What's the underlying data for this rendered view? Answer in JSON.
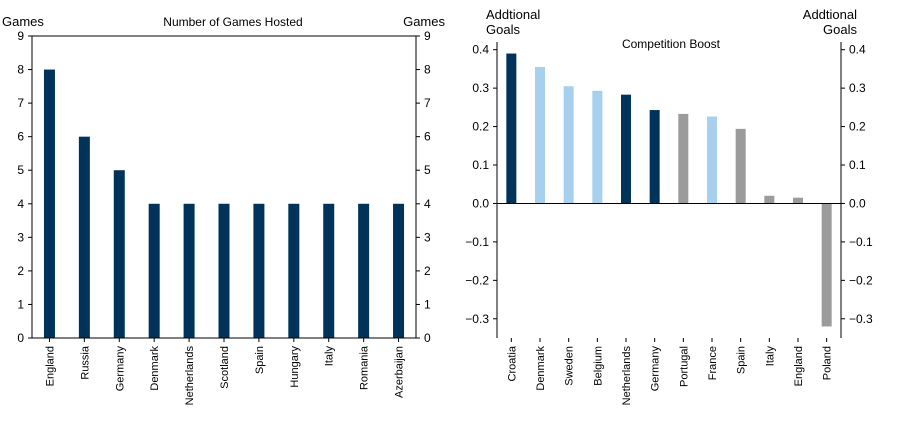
{
  "chart_data": [
    {
      "type": "bar",
      "title": "Number of Games Hosted",
      "ylabel_left": "Games",
      "ylabel_right": "Games",
      "ylim": [
        0,
        9
      ],
      "yticks": [
        "0",
        "1",
        "2",
        "3",
        "4",
        "5",
        "6",
        "7",
        "8",
        "9"
      ],
      "categories": [
        "England",
        "Russia",
        "Germany",
        "Denmark",
        "Netherlands",
        "Scotland",
        "Spain",
        "Hungary",
        "Italy",
        "Romania",
        "Azerbaijan"
      ],
      "values": [
        8,
        6,
        5,
        4,
        4,
        4,
        4,
        4,
        4,
        4,
        4
      ],
      "bar_colors": [
        "#003359",
        "#003359",
        "#003359",
        "#003359",
        "#003359",
        "#003359",
        "#003359",
        "#003359",
        "#003359",
        "#003359",
        "#003359"
      ]
    },
    {
      "type": "bar",
      "title": "Competition Boost",
      "ylabel_left": "Addtional Goals",
      "ylabel_right": "Addtional Goals",
      "ylim": [
        -0.35,
        0.42
      ],
      "yticks": [
        "−0.3",
        "−0.2",
        "−0.1",
        "0.0",
        "0.1",
        "0.2",
        "0.3",
        "0.4"
      ],
      "categories": [
        "Croatia",
        "Denmark",
        "Sweden",
        "Belgium",
        "Netherlands",
        "Germany",
        "Portugal",
        "France",
        "Spain",
        "Italy",
        "England",
        "Poland"
      ],
      "values": [
        0.39,
        0.355,
        0.305,
        0.293,
        0.283,
        0.243,
        0.233,
        0.226,
        0.194,
        0.02,
        0.015,
        -0.32
      ],
      "bar_colors": [
        "#003359",
        "#a6d0ee",
        "#a6d0ee",
        "#a6d0ee",
        "#003359",
        "#003359",
        "#9b9b9b",
        "#a6d0ee",
        "#9b9b9b",
        "#9b9b9b",
        "#9b9b9b",
        "#9b9b9b"
      ]
    }
  ]
}
